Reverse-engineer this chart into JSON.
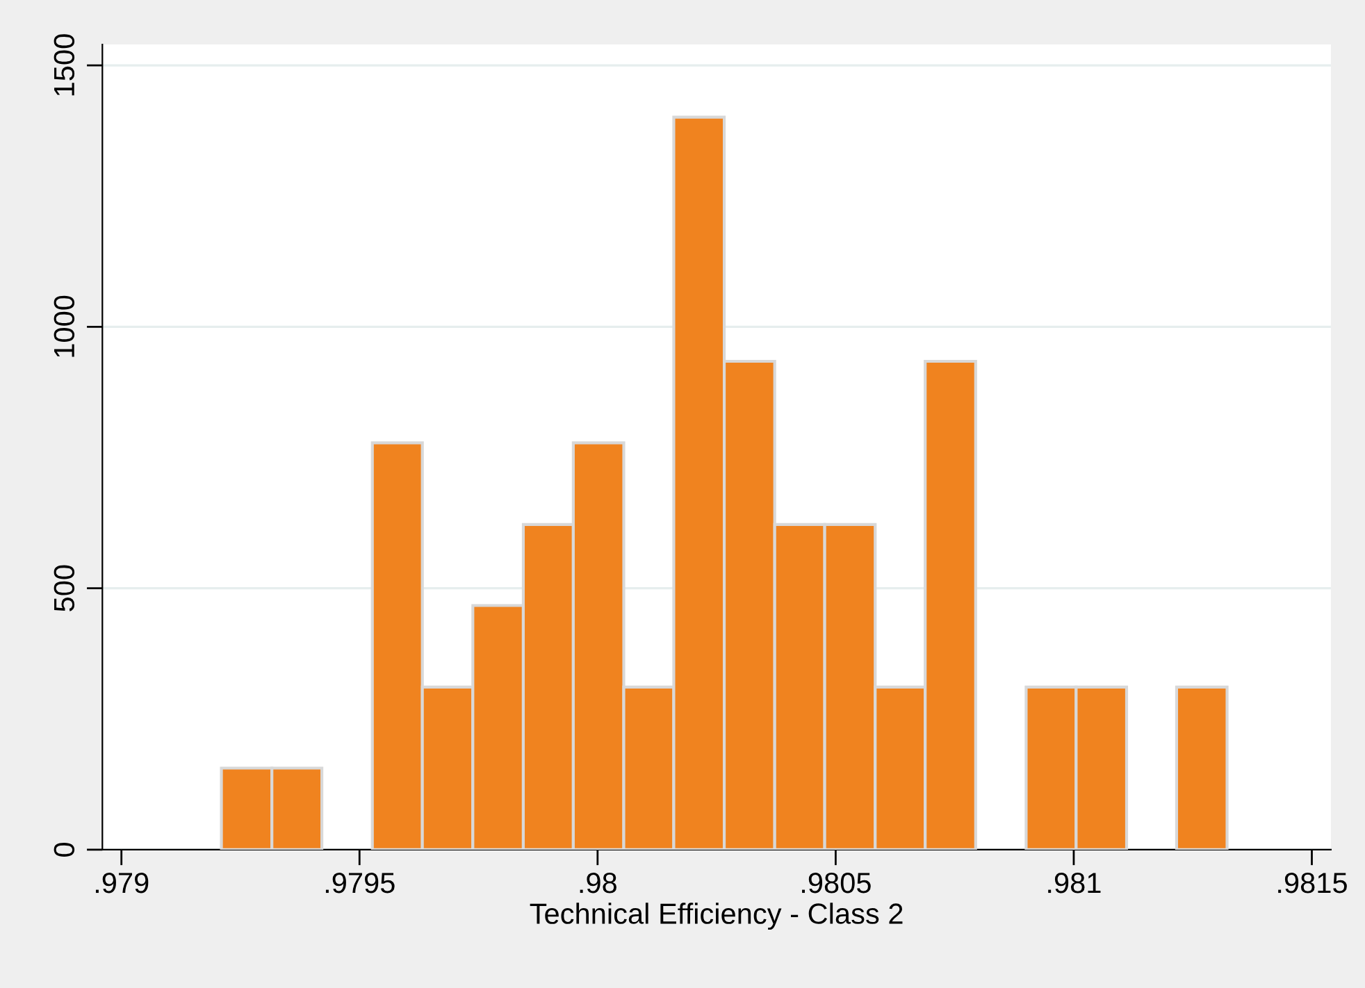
{
  "chart_data": {
    "type": "histogram",
    "xlabel": "Technical Efficiency - Class 2",
    "color": "#f0831f",
    "bins": [
      0.97921,
      0.979316,
      0.979421,
      0.979527,
      0.979632,
      0.979738,
      0.979844,
      0.979949,
      0.980055,
      0.98016,
      0.980266,
      0.980372,
      0.980477,
      0.980583,
      0.980688,
      0.980794,
      0.9809,
      0.981005,
      0.981111,
      0.981216,
      0.981322
    ],
    "values": [
      156,
      156,
      0,
      778,
      311,
      467,
      622,
      778,
      311,
      1401,
      934,
      622,
      622,
      311,
      934,
      0,
      311,
      311,
      0,
      311
    ],
    "xlim": [
      0.97896,
      0.98154
    ],
    "ylim": [
      0,
      1540
    ],
    "xticks": [
      {
        "value": 0.979,
        "label": ".979"
      },
      {
        "value": 0.9795,
        "label": ".9795"
      },
      {
        "value": 0.98,
        "label": ".98"
      },
      {
        "value": 0.9805,
        "label": ".9805"
      },
      {
        "value": 0.981,
        "label": ".981"
      },
      {
        "value": 0.9815,
        "label": ".9815"
      }
    ],
    "yticks": [
      0,
      500,
      1000,
      1500
    ],
    "grid": "y",
    "legend": false
  }
}
